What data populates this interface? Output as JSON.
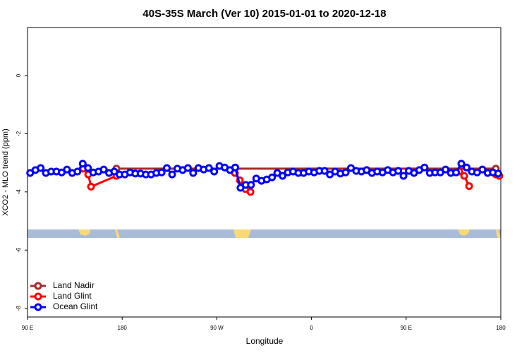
{
  "chart_data": {
    "type": "line",
    "title": "40S-35S March (Ver 10)   2015-01-01 to 2020-12-18",
    "x_label": "Longitude",
    "y_label": "XCO2 - MLO trend (ppm)",
    "xlim": [
      90,
      540
    ],
    "ylim": [
      -8.3,
      1.65
    ],
    "xticks": [
      {
        "value": 90,
        "label": "90 E"
      },
      {
        "value": 180,
        "label": "180"
      },
      {
        "value": 270,
        "label": "90 W"
      },
      {
        "value": 360,
        "label": "0"
      },
      {
        "value": 450,
        "label": "90 E"
      },
      {
        "value": 540,
        "label": "180"
      }
    ],
    "yticks": [
      0,
      -2,
      -4,
      -6,
      -8
    ],
    "legend": "bottom-left",
    "series": [
      {
        "name": "Land Nadir",
        "color": "#a52a2a",
        "x": [
          174.5,
          287.2,
          535.3
        ],
        "values": [
          -3.2,
          -3.2,
          -3.2
        ]
      },
      {
        "name": "Land Glint",
        "color": "#ff0000",
        "x": [
          143,
          147.7,
          150.4,
          174.5,
          230,
          287.2,
          291.9,
          297.2,
          302,
          400,
          500.5,
          505.2,
          509.9,
          520,
          535.3,
          538.6
        ],
        "values": [
          -3.2,
          -3.4,
          -3.82,
          -3.45,
          null,
          -3.35,
          -3.6,
          -3.9,
          -4.0,
          null,
          -3.3,
          -3.45,
          -3.8,
          null,
          -3.4,
          -3.45
        ]
      },
      {
        "name": "Ocean Glint",
        "color": "#0000ff",
        "x": [
          92.5,
          97.5,
          102.5,
          107.5,
          112.5,
          117.5,
          122.5,
          127.5,
          132.5,
          137.5,
          142.5,
          147.5,
          152.5,
          157.5,
          162.5,
          167.5,
          172.5,
          177.5,
          182.5,
          187.5,
          192.5,
          197.5,
          202.5,
          207.5,
          212.5,
          217.5,
          222.5,
          227.5,
          232.5,
          237.5,
          242.5,
          247.5,
          252.5,
          257.5,
          262.5,
          267.5,
          272.5,
          277.5,
          282.5,
          287.5,
          292.5,
          297.5,
          302.5,
          307.5,
          312.5,
          317.5,
          322.5,
          327.5,
          332.5,
          337.5,
          342.5,
          347.5,
          352.5,
          357.5,
          362.5,
          367.5,
          372.5,
          377.5,
          382.5,
          387.5,
          392.5,
          397.5,
          402.5,
          407.5,
          412.5,
          417.5,
          422.5,
          427.5,
          432.5,
          437.5,
          442.5,
          447.5,
          452.5,
          457.5,
          462.5,
          467.5,
          472.5,
          477.5,
          482.5,
          487.5,
          492.5,
          497.5,
          502.5,
          507.5,
          512.5,
          517.5,
          522.5,
          527.5,
          532.5,
          537.5
        ],
        "values": [
          -3.35,
          -3.25,
          -3.18,
          -3.35,
          -3.3,
          -3.3,
          -3.33,
          -3.23,
          -3.35,
          -3.3,
          -3.03,
          -3.18,
          -3.33,
          -3.3,
          -3.23,
          -3.35,
          -3.3,
          -3.4,
          -3.4,
          -3.33,
          -3.37,
          -3.37,
          -3.4,
          -3.4,
          -3.35,
          -3.33,
          -3.18,
          -3.4,
          -3.2,
          -3.25,
          -3.18,
          -3.35,
          -3.18,
          -3.23,
          -3.18,
          -3.3,
          -3.11,
          -3.16,
          -3.25,
          -3.16,
          -3.86,
          -3.76,
          -3.76,
          -3.54,
          -3.62,
          -3.57,
          -3.5,
          -3.35,
          -3.45,
          -3.33,
          -3.3,
          -3.35,
          -3.35,
          -3.3,
          -3.33,
          -3.28,
          -3.28,
          -3.4,
          -3.3,
          -3.37,
          -3.33,
          -3.18,
          -3.28,
          -3.3,
          -3.25,
          -3.35,
          -3.3,
          -3.33,
          -3.25,
          -3.33,
          -3.28,
          -3.45,
          -3.28,
          -3.35,
          -3.25,
          -3.16,
          -3.35,
          -3.33,
          -3.33,
          -3.23,
          -3.35,
          -3.33,
          -3.03,
          -3.16,
          -3.3,
          -3.33,
          -3.23,
          -3.35,
          -3.33,
          -3.37
        ]
      }
    ]
  }
}
